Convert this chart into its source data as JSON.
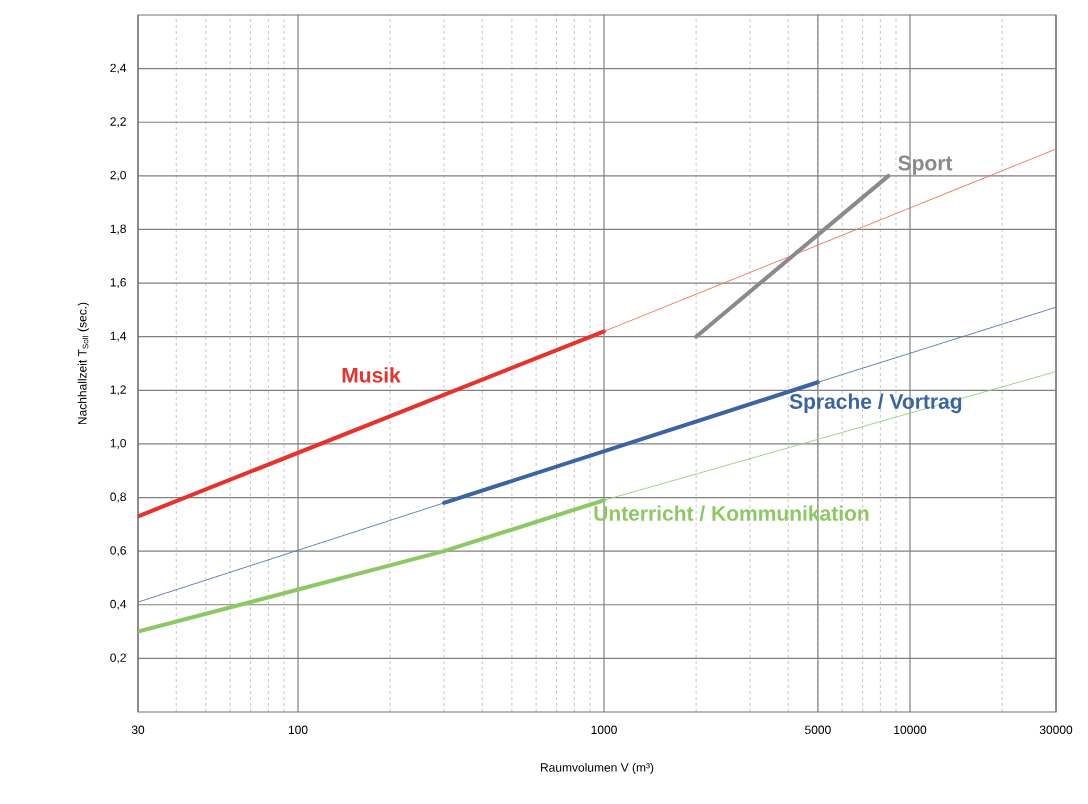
{
  "chart_data": {
    "type": "line",
    "xlabel": "Raumvolumen V (m³)",
    "ylabel": "Nachhallzeit T$_{Soll}$ (sec.)",
    "log": "x",
    "grid": true,
    "xlim": [
      30,
      30000
    ],
    "ylim": [
      0,
      2.6
    ],
    "xticks": [
      30,
      100,
      1000,
      5000,
      10000,
      30000
    ],
    "yticks": [
      {
        "value": 0.2,
        "label": "0,2"
      },
      {
        "value": 0.4,
        "label": "0,4"
      },
      {
        "value": 0.6,
        "label": "0,6"
      },
      {
        "value": 0.8,
        "label": "0,8"
      },
      {
        "value": 1.0,
        "label": "1,0"
      },
      {
        "value": 1.2,
        "label": "1,2"
      },
      {
        "value": 1.4,
        "label": "1,4"
      },
      {
        "value": 1.6,
        "label": "1,6"
      },
      {
        "value": 1.8,
        "label": "1,8"
      },
      {
        "value": 2.0,
        "label": "2,0"
      },
      {
        "value": 2.2,
        "label": "2,2"
      },
      {
        "value": 2.4,
        "label": "2,4"
      }
    ],
    "series": [
      {
        "name": "Musik",
        "color": "#e8312a",
        "line_style": "solid",
        "x": [
          30,
          1000
        ],
        "values": [
          0.73,
          1.42
        ]
      },
      {
        "color": "#f07850",
        "line_style": "dotted",
        "x": [
          1000,
          30000
        ],
        "values": [
          1.42,
          2.1
        ]
      },
      {
        "color": "#5a78b4",
        "line_style": "dotted",
        "x": [
          30,
          300
        ],
        "values": [
          0.41,
          0.78
        ]
      },
      {
        "name": "Sprache / Vortrag",
        "color": "#3a64a4",
        "line_style": "solid",
        "x": [
          300,
          5000
        ],
        "values": [
          0.78,
          1.23
        ]
      },
      {
        "color": "#5a78b4",
        "line_style": "dotted",
        "x": [
          5000,
          30000
        ],
        "values": [
          1.23,
          1.51
        ]
      },
      {
        "name": "Unterricht / Kommunikation",
        "color": "#8cc863",
        "line_style": "solid",
        "x": [
          30,
          300,
          1000
        ],
        "values": [
          0.3,
          0.6,
          0.79
        ]
      },
      {
        "color": "#9cd073",
        "line_style": "dotted",
        "x": [
          1000,
          30000
        ],
        "values": [
          0.79,
          1.27
        ]
      },
      {
        "name": "Sport",
        "color": "#8a8a8a",
        "line_style": "solid",
        "x": [
          2000,
          8500
        ],
        "values": [
          1.4,
          2.0
        ]
      }
    ]
  }
}
